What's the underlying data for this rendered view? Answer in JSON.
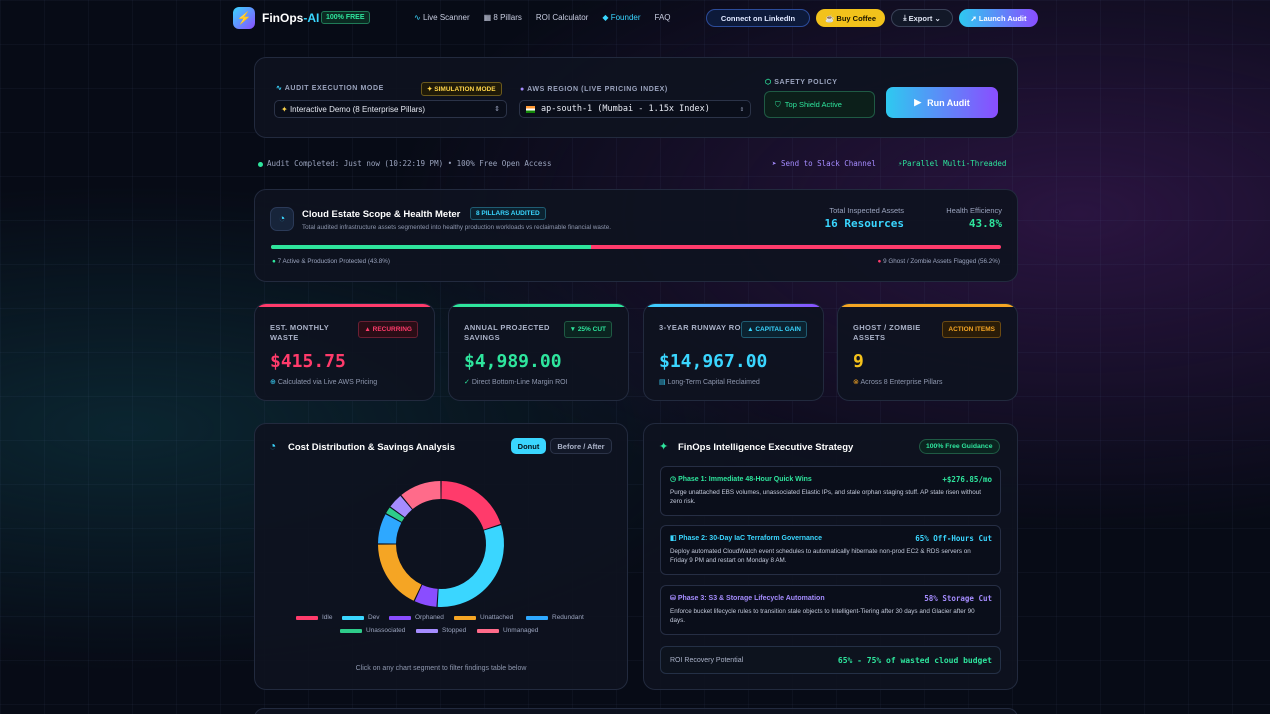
{
  "nav": {
    "brand_main": "FinOps",
    "brand_accent": "-AI",
    "free_badge": "100% FREE",
    "links": [
      "Live Scanner",
      "8 Pillars",
      "ROI Calculator",
      "Founder",
      "FAQ"
    ],
    "linkedin": "Connect on LinkedIn",
    "coffee": "Buy Coffee",
    "export": "Export",
    "launch": "Launch Audit"
  },
  "config": {
    "mode_label": "AUDIT EXECUTION MODE",
    "sim_badge": "SIMULATION MODE",
    "mode_value": "Interactive Demo (8 Enterprise Pillars)",
    "region_label": "AWS REGION (LIVE PRICING INDEX)",
    "region_value": "ap-south-1 (Mumbai - 1.15x Index)",
    "safety_label": "SAFETY POLICY",
    "safety_value": "Top Shield Active",
    "run_button": "Run Audit"
  },
  "status": {
    "completed": "Audit Completed: Just now (10:22:19 PM) • 100% Free Open Access",
    "slack": "Send to Slack Channel",
    "parallel": "Parallel Multi-Threaded"
  },
  "health": {
    "title": "Cloud Estate Scope & Health Meter",
    "badge": "8 PILLARS AUDITED",
    "subtitle": "Total audited infrastructure assets segmented into healthy production workloads vs reclaimable financial waste.",
    "inspected_label": "Total Inspected Assets",
    "inspected_value": "16 Resources",
    "efficiency_label": "Health Efficiency",
    "efficiency_value": "43.8%",
    "healthy_fraction": 0.438,
    "active_caption": "7 Active & Production Protected (43.8%)",
    "ghost_caption": "9 Ghost / Zombie Assets Flagged (56.2%)"
  },
  "kpis": [
    {
      "title": "EST. MONTHLY WASTE",
      "tag": "▲ RECURRING",
      "value": "$415.75",
      "foot": "Calculated via Live AWS Pricing",
      "color": "#ff3b6b"
    },
    {
      "title": "ANNUAL PROJECTED SAVINGS",
      "tag": "▼ 25% CUT",
      "value": "$4,989.00",
      "foot": "Direct Bottom-Line Margin ROI",
      "color": "#2ee59d"
    },
    {
      "title": "3-YEAR RUNWAY ROI",
      "tag": "▲ CAPITAL GAIN",
      "value": "$14,967.00",
      "foot": "Long-Term Capital Reclaimed",
      "color": "#3ad6ff"
    },
    {
      "title": "GHOST / ZOMBIE ASSETS",
      "tag": "ACTION ITEMS",
      "value": "9",
      "foot": "Across 8 Enterprise Pillars",
      "color": "#f5a524"
    }
  ],
  "chart": {
    "title": "Cost Distribution & Savings Analysis",
    "tab_active": "Donut",
    "tab_other": "Before / After",
    "hint": "Click on any chart segment to filter findings table below"
  },
  "chart_data": {
    "type": "pie",
    "categories": [
      "Idle",
      "Dev",
      "Orphaned",
      "Unattached",
      "Redundant",
      "Unassociated",
      "Stopped",
      "Unmanaged"
    ],
    "values": [
      20,
      31,
      6,
      18,
      8,
      2,
      4,
      11
    ],
    "colors": [
      "#ff3b6b",
      "#3ad6ff",
      "#8a4dff",
      "#f5a524",
      "#2ea8ff",
      "#2ecc8a",
      "#a58cff",
      "#ff6b8a"
    ],
    "legend_position": "bottom"
  },
  "strategy": {
    "title": "FinOps Intelligence Executive Strategy",
    "badge": "100% Free Guidance",
    "phases": [
      {
        "title": "Phase 1: Immediate 48-Hour Quick Wins",
        "value": "+$276.85/mo",
        "desc": "Purge unattached EBS volumes, unassociated Elastic IPs, and stale orphan staging stuff. AP state risen without zero risk.",
        "color": "#2ee59d"
      },
      {
        "title": "Phase 2: 30-Day IaC Terraform Governance",
        "value": "65% Off-Hours Cut",
        "desc": "Deploy automated CloudWatch event schedules to automatically hibernate non-prod EC2 & RDS servers on Friday 9 PM and restart on Monday 8 AM.",
        "color": "#3ad6ff"
      },
      {
        "title": "Phase 3: S3 & Storage Lifecycle Automation",
        "value": "58% Storage Cut",
        "desc": "Enforce bucket lifecycle rules to transition stale objects to Intelligent-Tiering after 30 days and Glacier after 90 days.",
        "color": "#a58cff"
      }
    ],
    "roi_label": "ROI Recovery Potential",
    "roi_value": "65% - 75% of wasted cloud budget"
  }
}
